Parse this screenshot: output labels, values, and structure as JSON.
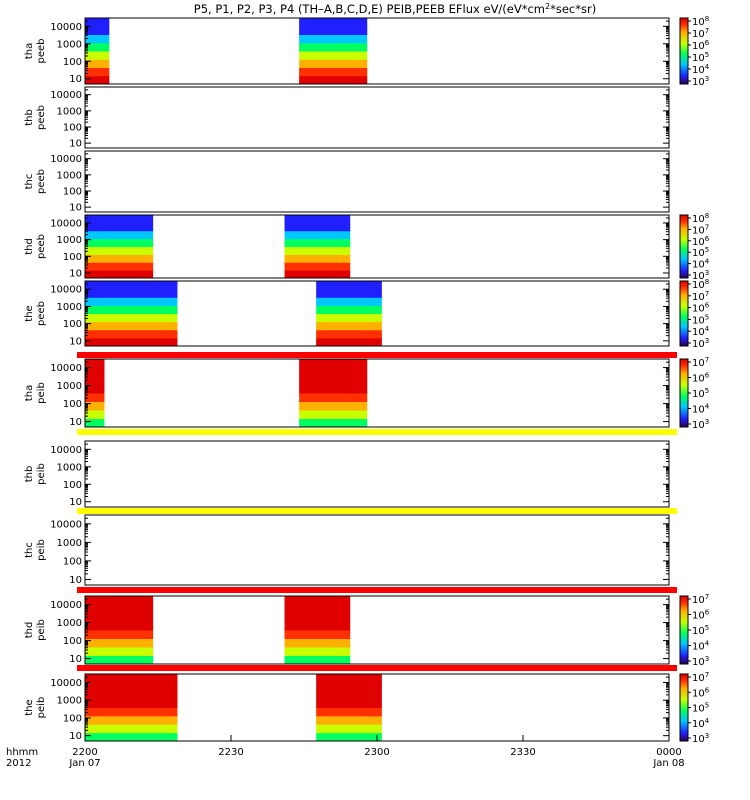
{
  "chart_data": {
    "type": "heatmap",
    "title": {
      "prefix": "P5, P1, P2, P3, P4 (TH–A,B,C,D,E) PEIB,PEEB EFlux eV/(eV*cm",
      "sup": "2",
      "suffix": "*sec*sr)"
    },
    "y_scale": "log",
    "time_axis": {
      "label_line1": "hhmm",
      "label_line2": "2012",
      "ticks": [
        {
          "t": 0,
          "label": "2200",
          "sub": "Jan 07"
        },
        {
          "t": 30,
          "label": "2230",
          "sub": ""
        },
        {
          "t": 60,
          "label": "2300",
          "sub": ""
        },
        {
          "t": 90,
          "label": "2330",
          "sub": ""
        },
        {
          "t": 120,
          "label": "0000",
          "sub": "Jan 08"
        }
      ],
      "range_minutes": [
        0,
        120
      ]
    },
    "panels": [
      {
        "probe": "tha",
        "product": "peeb",
        "yrange": [
          5,
          30000
        ],
        "ticks": [
          "10000",
          "1000",
          "100",
          "10"
        ],
        "colorbar": {
          "min_exp": 3,
          "max_exp": 8,
          "labels": [
            "10",
            "10",
            "10",
            "10",
            "10",
            "10"
          ],
          "exps": [
            "8",
            "7",
            "6",
            "5",
            "4",
            "3"
          ]
        },
        "data_intervals": [
          [
            0,
            5
          ],
          [
            44,
            58
          ]
        ],
        "separator": null
      },
      {
        "probe": "thb",
        "product": "peeb",
        "yrange": [
          5,
          30000
        ],
        "ticks": [
          "10000",
          "1000",
          "100",
          "10"
        ],
        "colorbar": null,
        "data_intervals": [],
        "separator": null
      },
      {
        "probe": "thc",
        "product": "peeb",
        "yrange": [
          5,
          30000
        ],
        "ticks": [
          "10000",
          "1000",
          "100",
          "10"
        ],
        "colorbar": null,
        "data_intervals": [],
        "separator": null
      },
      {
        "probe": "thd",
        "product": "peeb",
        "yrange": [
          5,
          30000
        ],
        "ticks": [
          "10000",
          "1000",
          "100",
          "10"
        ],
        "colorbar": {
          "min_exp": 3,
          "max_exp": 8,
          "labels": [
            "10",
            "10",
            "10",
            "10",
            "10",
            "10"
          ],
          "exps": [
            "8",
            "7",
            "6",
            "5",
            "4",
            "3"
          ]
        },
        "data_intervals": [
          [
            0,
            14
          ],
          [
            41,
            54.5
          ]
        ],
        "separator": null
      },
      {
        "probe": "the",
        "product": "peeb",
        "yrange": [
          5,
          30000
        ],
        "ticks": [
          "10000",
          "1000",
          "100",
          "10"
        ],
        "colorbar": {
          "min_exp": 3,
          "max_exp": 8,
          "labels": [
            "10",
            "10",
            "10",
            "10",
            "10",
            "10"
          ],
          "exps": [
            "8",
            "7",
            "6",
            "5",
            "4",
            "3"
          ]
        },
        "data_intervals": [
          [
            0,
            19
          ],
          [
            47.5,
            61
          ]
        ],
        "separator": "#ff0000"
      },
      {
        "probe": "tha",
        "product": "peib",
        "yrange": [
          5,
          30000
        ],
        "ticks": [
          "10000",
          "1000",
          "100",
          "10"
        ],
        "colorbar": {
          "min_exp": 3,
          "max_exp": 7,
          "labels": [
            "10",
            "10",
            "10",
            "10",
            "10"
          ],
          "exps": [
            "7",
            "6",
            "5",
            "4",
            "3"
          ]
        },
        "data_intervals": [
          [
            0,
            4
          ],
          [
            44,
            58
          ]
        ],
        "separator": "#ffff00"
      },
      {
        "probe": "thb",
        "product": "peib",
        "yrange": [
          5,
          30000
        ],
        "ticks": [
          "10000",
          "1000",
          "100",
          "10"
        ],
        "colorbar": null,
        "data_intervals": [],
        "separator": "#ffff00"
      },
      {
        "probe": "thc",
        "product": "peib",
        "yrange": [
          5,
          30000
        ],
        "ticks": [
          "10000",
          "1000",
          "100",
          "10"
        ],
        "colorbar": null,
        "data_intervals": [],
        "separator": "#ff0000"
      },
      {
        "probe": "thd",
        "product": "peib",
        "yrange": [
          5,
          30000
        ],
        "ticks": [
          "10000",
          "1000",
          "100",
          "10"
        ],
        "colorbar": {
          "min_exp": 3,
          "max_exp": 7,
          "labels": [
            "10",
            "10",
            "10",
            "10",
            "10"
          ],
          "exps": [
            "7",
            "6",
            "5",
            "4",
            "3"
          ]
        },
        "data_intervals": [
          [
            0,
            14
          ],
          [
            41,
            54.5
          ]
        ],
        "separator": "#ff0000"
      },
      {
        "probe": "the",
        "product": "peib",
        "yrange": [
          5,
          30000
        ],
        "ticks": [
          "10000",
          "1000",
          "100",
          "10"
        ],
        "colorbar": {
          "min_exp": 3,
          "max_exp": 7,
          "labels": [
            "10",
            "10",
            "10",
            "10",
            "10"
          ],
          "exps": [
            "7",
            "6",
            "5",
            "4",
            "3"
          ]
        },
        "data_intervals": [
          [
            0,
            19
          ],
          [
            47.5,
            61
          ]
        ],
        "separator": null
      }
    ]
  }
}
